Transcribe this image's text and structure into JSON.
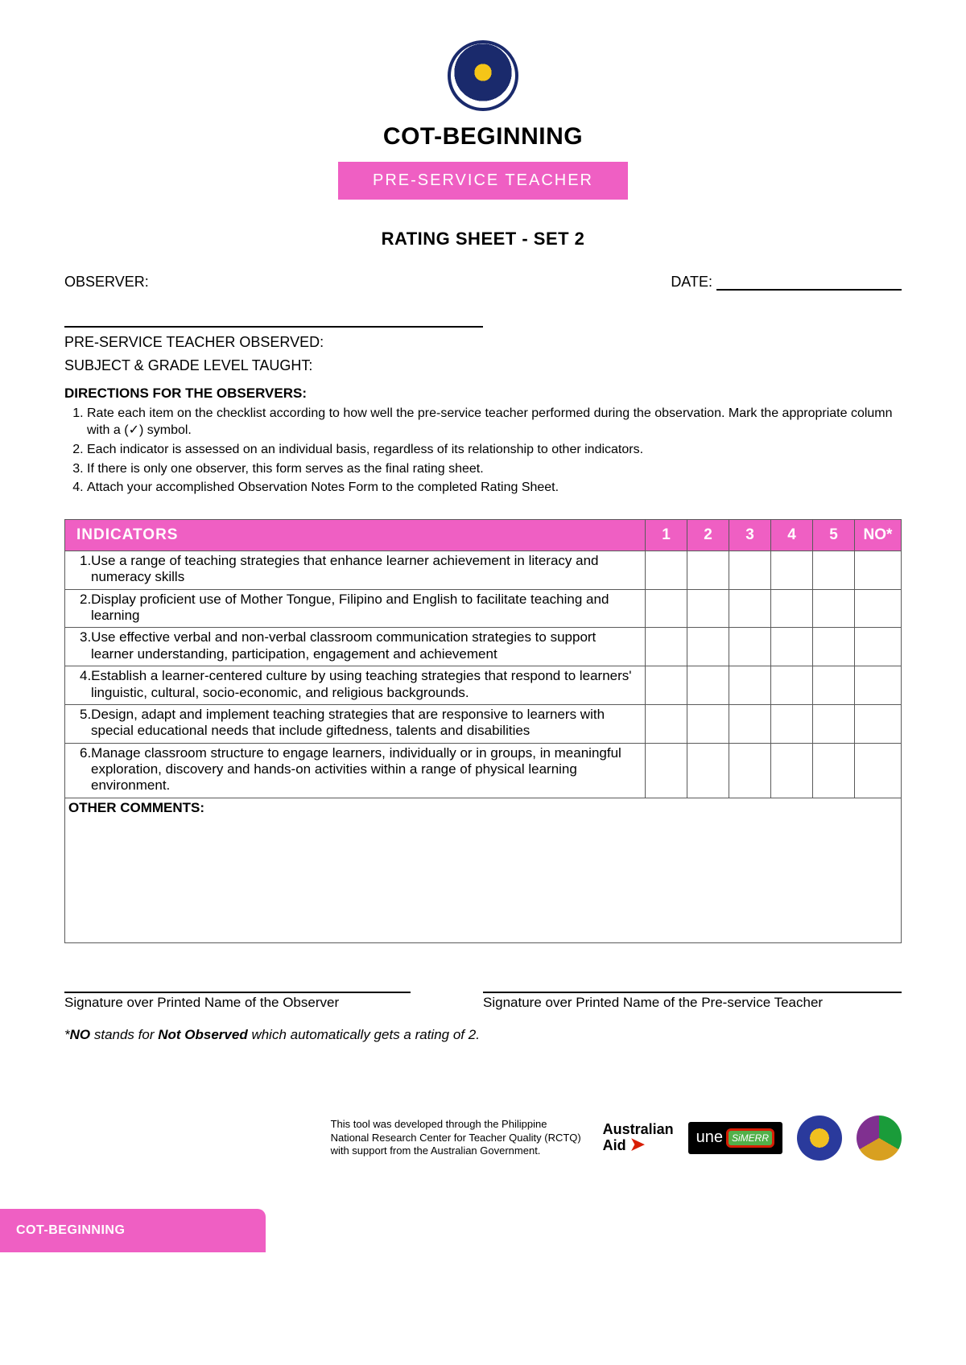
{
  "header": {
    "main_title": "COT-BEGINNING",
    "pink_band": "PRE-SERVICE TEACHER",
    "rating_sheet": "RATING SHEET - SET 2"
  },
  "fields": {
    "observer_label": "OBSERVER:",
    "date_label": "DATE:",
    "pst_observed_label": "PRE-SERVICE TEACHER OBSERVED:",
    "subject_label": "SUBJECT & GRADE LEVEL TAUGHT:"
  },
  "directions": {
    "heading": "DIRECTIONS FOR THE OBSERVERS:",
    "items": [
      "Rate each item on the checklist according to how well the pre-service teacher performed during the observation. Mark the appropriate column with a (✓) symbol.",
      "Each indicator is assessed on an individual basis, regardless of its relationship to other indicators.",
      "If there is only one observer, this form serves as the final rating sheet.",
      "Attach your accomplished Observation Notes Form to the completed Rating Sheet."
    ]
  },
  "table": {
    "head_indicator": "INDICATORS",
    "cols": [
      "1",
      "2",
      "3",
      "4",
      "5",
      "NO*"
    ],
    "rows": [
      "1.Use a range of teaching strategies that enhance learner achievement in literacy and numeracy skills",
      "2.Display proficient use of Mother Tongue, Filipino and English to facilitate teaching and learning",
      "3.Use effective verbal and non-verbal classroom communication strategies to support learner understanding, participation, engagement and achievement",
      "4.Establish a learner-centered culture by using teaching strategies that respond to learners' linguistic, cultural, socio-economic, and religious backgrounds.",
      "5.Design, adapt and implement teaching strategies that are responsive to learners with special educational needs that include giftedness, talents and disabilities",
      "6.Manage classroom structure to engage learners, individually or in groups, in meaningful exploration, discovery and hands-on activities within a range of physical learning environment."
    ],
    "comments_label": "OTHER COMMENTS:"
  },
  "signatures": {
    "observer": "Signature over Printed Name of the Observer",
    "pst": "Signature over Printed Name of the Pre-service Teacher"
  },
  "footnote": {
    "prefix": "*",
    "no": "NO",
    "mid": " stands for ",
    "notobs": "Not Observed",
    "suffix": " which automatically gets a rating of 2."
  },
  "credit": {
    "text": "This tool was developed through the Philippine National Research Center for Teacher Quality (RCTQ) with support from the Australian Government.",
    "aus1": "Australian",
    "aus2": "Aid",
    "une": "une",
    "simerr": "SiMERR"
  },
  "footer_tab": "COT-BEGINNING",
  "colors": {
    "accent_pink": "#ef5fc3",
    "text_white": "#ffffff",
    "border_gray": "#5a5a5a"
  }
}
